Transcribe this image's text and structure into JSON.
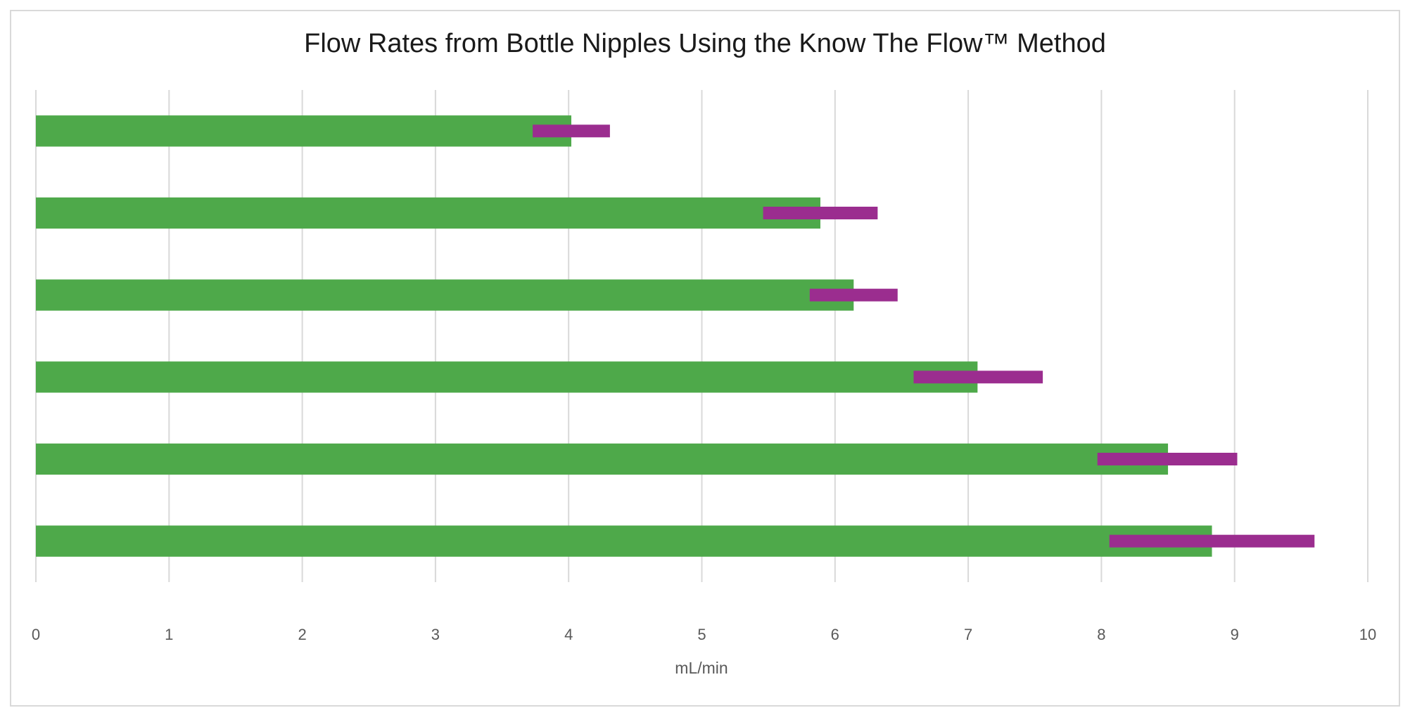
{
  "chart_data": {
    "type": "bar",
    "orientation": "horizontal",
    "title": "Flow Rates from Bottle Nipples Using the Know The Flow™ Method",
    "x_label": "mL/min",
    "categories": [
      null,
      null,
      null,
      null,
      null,
      null
    ],
    "values": [
      4.02,
      5.89,
      6.14,
      7.07,
      8.5,
      8.83
    ],
    "color": "#4ea94a",
    "ranges": [
      [
        3.73,
        4.31
      ],
      [
        5.46,
        6.32
      ],
      [
        5.81,
        6.47
      ],
      [
        6.59,
        7.56
      ],
      [
        7.97,
        9.02
      ],
      [
        8.06,
        9.6
      ]
    ],
    "range_color": "#9b2d8f",
    "xlim": [
      0,
      10
    ],
    "xticks": [
      0,
      1,
      2,
      3,
      4,
      5,
      6,
      7,
      8,
      9,
      10
    ],
    "grid": true
  }
}
